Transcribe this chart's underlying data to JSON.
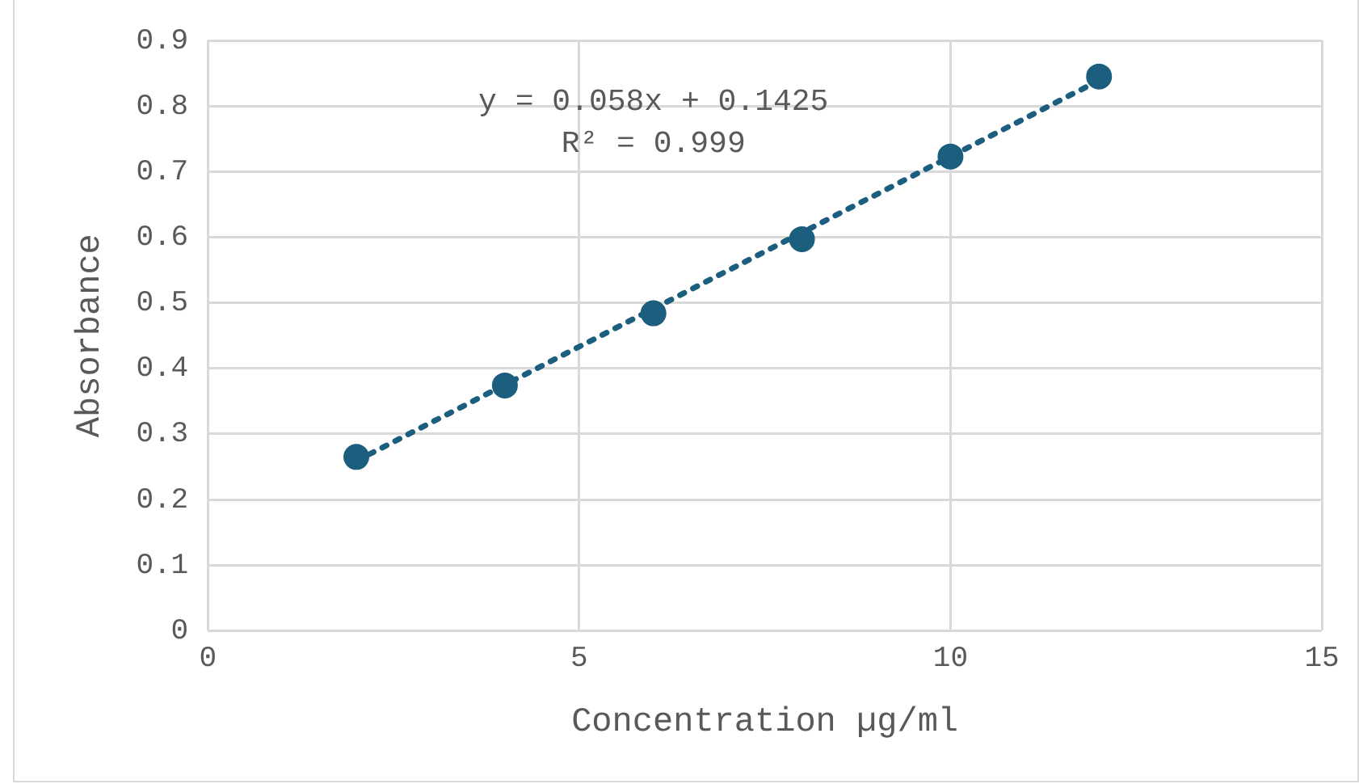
{
  "chart_data": {
    "type": "scatter",
    "xlabel": "Concentration µg/ml",
    "ylabel": "Absorbance",
    "series": [
      {
        "type": "scatter",
        "color": "#1b5e7e",
        "x": [
          2,
          4,
          6,
          8,
          10,
          12
        ],
        "values": [
          0.265,
          0.374,
          0.484,
          0.597,
          0.723,
          0.845
        ],
        "marker": "circle"
      },
      {
        "type": "line",
        "color": "#1b5e7e",
        "x": [
          2,
          12
        ],
        "values": [
          0.259,
          0.839
        ],
        "marker": "none",
        "line_style": "dotted"
      }
    ],
    "annotations": [
      "y = 0.058x + 0.1425",
      "R² = 0.999"
    ],
    "xlim": [
      0,
      15
    ],
    "xticks": [
      0,
      5,
      10,
      15
    ],
    "ylim": [
      0,
      0.9
    ],
    "yticks": [
      0,
      0.1,
      0.2,
      0.3,
      0.4,
      0.5,
      0.6,
      0.7,
      0.8,
      0.9
    ],
    "grid": true,
    "legend": false
  }
}
